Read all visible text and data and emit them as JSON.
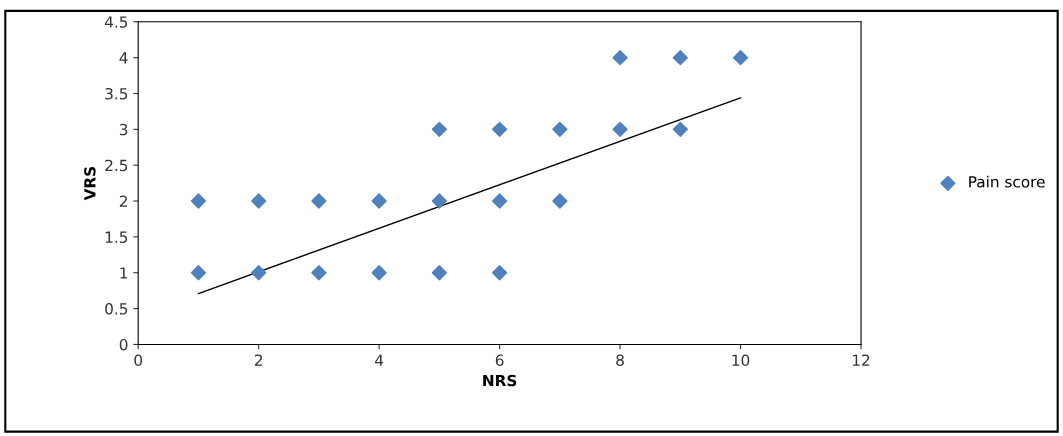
{
  "chart_data": {
    "type": "scatter",
    "xlabel": "NRS",
    "ylabel": "VRS",
    "series": [
      {
        "name": "Pain score",
        "color": "#4f81bd",
        "marker": "diamond",
        "x": [
          1,
          1,
          2,
          2,
          3,
          3,
          4,
          4,
          5,
          5,
          5,
          6,
          6,
          6,
          7,
          7,
          8,
          8,
          9,
          9,
          10
        ],
        "values": [
          1,
          2,
          1,
          2,
          1,
          2,
          1,
          2,
          1,
          2,
          3,
          1,
          2,
          3,
          2,
          3,
          3,
          4,
          3,
          4,
          4
        ]
      },
      {
        "type": "line",
        "color": "#000000",
        "marker": "none",
        "x": [
          1,
          10
        ],
        "values": [
          0.71,
          3.44
        ]
      }
    ],
    "xlim": [
      0,
      12
    ],
    "xticks": [
      0,
      2,
      4,
      6,
      8,
      10,
      12
    ],
    "ylim": [
      0,
      4.5
    ],
    "yticks": [
      0,
      0.5,
      1,
      1.5,
      2,
      2.5,
      3,
      3.5,
      4,
      4.5
    ],
    "grid": false,
    "legend": "right"
  }
}
